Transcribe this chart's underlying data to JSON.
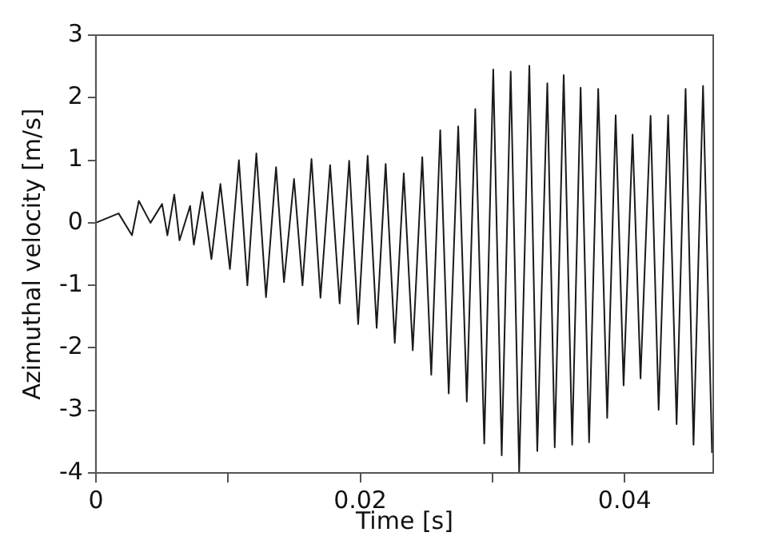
{
  "chart_data": {
    "type": "line",
    "xlabel": "Time [s]",
    "ylabel": "Azimuthal velocity [m/s]",
    "xlim": [
      0,
      0.0467
    ],
    "ylim": [
      -4,
      3
    ],
    "xticks": [
      0,
      {
        "value": 0.01,
        "label": null
      },
      0.02,
      {
        "value": 0.03,
        "label": null
      },
      0.04
    ],
    "yticks": [
      -4,
      -3,
      -2,
      -1,
      0,
      1,
      2,
      3
    ],
    "grid": false,
    "legend": false,
    "marker": "none",
    "line_style": "solid",
    "series": [
      {
        "color": "#1a1a1a",
        "x": [
          0,
          0.00172,
          0.00273,
          0.00325,
          0.00413,
          0.00501,
          0.00541,
          0.00593,
          0.00633,
          0.00713,
          0.00741,
          0.00806,
          0.00874,
          0.00942,
          0.01014,
          0.01082,
          0.01146,
          0.01214,
          0.01287,
          0.01363,
          0.01423,
          0.01499,
          0.01563,
          0.01631,
          0.01699,
          0.01772,
          0.01844,
          0.01916,
          0.01984,
          0.02056,
          0.02124,
          0.02192,
          0.02261,
          0.02329,
          0.02397,
          0.02469,
          0.02537,
          0.02605,
          0.02669,
          0.02741,
          0.02806,
          0.0287,
          0.02938,
          0.03006,
          0.0307,
          0.03138,
          0.03202,
          0.03279,
          0.03339,
          0.03415,
          0.03471,
          0.03539,
          0.03603,
          0.03667,
          0.03731,
          0.038,
          0.03868,
          0.03932,
          0.03992,
          0.0406,
          0.0412,
          0.04196,
          0.04257,
          0.04329,
          0.04393,
          0.04461,
          0.04521,
          0.04593,
          0.04661
        ],
        "values": [
          0,
          0.15,
          -0.2,
          0.35,
          0.0,
          0.3,
          -0.2,
          0.45,
          -0.28,
          0.27,
          -0.35,
          0.49,
          -0.58,
          0.62,
          -0.74,
          1.0,
          -1.0,
          1.11,
          -1.19,
          0.89,
          -0.95,
          0.7,
          -1.0,
          1.02,
          -1.2,
          0.92,
          -1.29,
          0.99,
          -1.62,
          1.07,
          -1.68,
          0.94,
          -1.92,
          0.79,
          -2.04,
          1.05,
          -2.43,
          1.48,
          -2.73,
          1.54,
          -2.86,
          1.82,
          -3.53,
          2.45,
          -3.72,
          2.42,
          -3.98,
          2.51,
          -3.65,
          2.23,
          -3.59,
          2.36,
          -3.55,
          2.16,
          -3.51,
          2.14,
          -3.12,
          1.72,
          -2.6,
          1.41,
          -2.49,
          1.71,
          -2.99,
          1.72,
          -3.22,
          2.14,
          -3.55,
          2.19,
          -3.68
        ]
      }
    ]
  }
}
